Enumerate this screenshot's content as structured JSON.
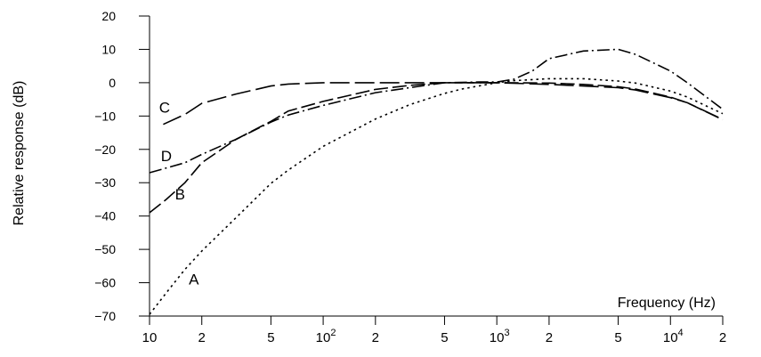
{
  "chart_data": {
    "type": "line",
    "title": "",
    "xlabel": "Frequency (Hz)",
    "ylabel": "Relative response (dB)",
    "xscale": "log",
    "xlim": [
      10,
      20000
    ],
    "ylim": [
      -70,
      20
    ],
    "grid": false,
    "x_ticks": [
      {
        "value": 10,
        "label": "10",
        "sup": ""
      },
      {
        "value": 20,
        "label": "2",
        "sup": ""
      },
      {
        "value": 50,
        "label": "5",
        "sup": ""
      },
      {
        "value": 100,
        "label": "10",
        "sup": "2"
      },
      {
        "value": 200,
        "label": "2",
        "sup": ""
      },
      {
        "value": 500,
        "label": "5",
        "sup": ""
      },
      {
        "value": 1000,
        "label": "10",
        "sup": "3"
      },
      {
        "value": 2000,
        "label": "2",
        "sup": ""
      },
      {
        "value": 5000,
        "label": "5",
        "sup": ""
      },
      {
        "value": 10000,
        "label": "10",
        "sup": "4"
      },
      {
        "value": 20000,
        "label": "2",
        "sup": ""
      }
    ],
    "y_ticks": [
      20,
      10,
      0,
      -10,
      -20,
      -30,
      -40,
      -50,
      -60,
      -70
    ],
    "series": [
      {
        "name": "A",
        "style": "dotted",
        "label_at": [
          18,
          -60.5
        ],
        "points": [
          [
            10,
            -69.5
          ],
          [
            12.5,
            -63
          ],
          [
            16,
            -56
          ],
          [
            20,
            -50.5
          ],
          [
            31.5,
            -40.5
          ],
          [
            50,
            -30.2
          ],
          [
            63,
            -26.2
          ],
          [
            100,
            -19.1
          ],
          [
            200,
            -10.9
          ],
          [
            315,
            -6.6
          ],
          [
            500,
            -3.2
          ],
          [
            630,
            -1.9
          ],
          [
            1000,
            0
          ],
          [
            1250,
            0.6
          ],
          [
            2000,
            1.2
          ],
          [
            3150,
            1.2
          ],
          [
            5000,
            0.5
          ],
          [
            6300,
            -0.1
          ],
          [
            10000,
            -2.5
          ],
          [
            12500,
            -4.3
          ],
          [
            20000,
            -9.3
          ]
        ]
      },
      {
        "name": "B",
        "style": "long-dash",
        "label_at": [
          15,
          -35
        ],
        "points": [
          [
            10,
            -39
          ],
          [
            12.5,
            -35
          ],
          [
            16,
            -30
          ],
          [
            20,
            -24
          ],
          [
            31.5,
            -17
          ],
          [
            50,
            -11.6
          ],
          [
            63,
            -8.5
          ],
          [
            100,
            -5.6
          ],
          [
            200,
            -2
          ],
          [
            315,
            -0.8
          ],
          [
            500,
            0
          ],
          [
            800,
            0
          ],
          [
            1000,
            0
          ],
          [
            2000,
            -0.1
          ],
          [
            3150,
            -0.5
          ],
          [
            5000,
            -1.2
          ],
          [
            6300,
            -1.9
          ],
          [
            10000,
            -4.3
          ],
          [
            12500,
            -6
          ],
          [
            20000,
            -11.1
          ]
        ]
      },
      {
        "name": "C",
        "style": "dash",
        "label_at": [
          12.2,
          -9
        ],
        "points": [
          [
            12,
            -12.5
          ],
          [
            16,
            -9.5
          ],
          [
            20,
            -6.2
          ],
          [
            31.5,
            -3.4
          ],
          [
            50,
            -1
          ],
          [
            63,
            -0.4
          ],
          [
            100,
            0
          ],
          [
            200,
            0
          ],
          [
            500,
            0
          ],
          [
            1000,
            0
          ],
          [
            2000,
            -0.5
          ],
          [
            3150,
            -1
          ],
          [
            5000,
            -1.5
          ],
          [
            6300,
            -2.2
          ],
          [
            10000,
            -4.5
          ],
          [
            12500,
            -6
          ],
          [
            20000,
            -11
          ]
        ]
      },
      {
        "name": "D",
        "style": "dash-dot",
        "label_at": [
          12.5,
          -23.5
        ],
        "points": [
          [
            10,
            -27
          ],
          [
            16,
            -24
          ],
          [
            20,
            -21.5
          ],
          [
            31.5,
            -17
          ],
          [
            50,
            -11.8
          ],
          [
            63,
            -9.7
          ],
          [
            100,
            -6.8
          ],
          [
            200,
            -3
          ],
          [
            315,
            -1.5
          ],
          [
            500,
            0
          ],
          [
            800,
            0.2
          ],
          [
            1000,
            0.2
          ],
          [
            1250,
            1
          ],
          [
            1600,
            3.5
          ],
          [
            2000,
            7.2
          ],
          [
            3150,
            9.5
          ],
          [
            5000,
            10
          ],
          [
            6300,
            8.5
          ],
          [
            10000,
            3.5
          ],
          [
            12500,
            0
          ],
          [
            20000,
            -8
          ]
        ]
      }
    ]
  }
}
